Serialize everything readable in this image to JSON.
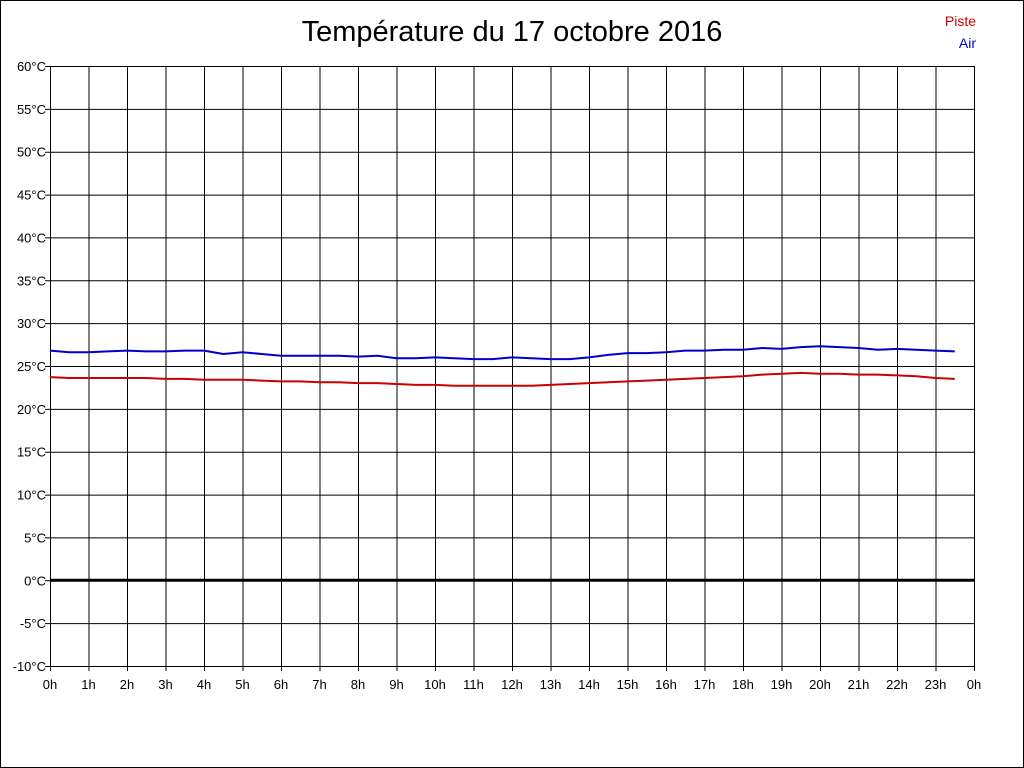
{
  "chart_data": {
    "type": "line",
    "title": "Température du 17 octobre 2016",
    "x_ticks": [
      "0h",
      "1h",
      "2h",
      "3h",
      "4h",
      "5h",
      "6h",
      "7h",
      "8h",
      "9h",
      "10h",
      "11h",
      "12h",
      "13h",
      "14h",
      "15h",
      "16h",
      "17h",
      "18h",
      "19h",
      "20h",
      "21h",
      "22h",
      "23h",
      "0h"
    ],
    "y_ticks": [
      "60°C",
      "55°C",
      "50°C",
      "45°C",
      "40°C",
      "35°C",
      "30°C",
      "25°C",
      "20°C",
      "15°C",
      "10°C",
      "5°C",
      "0°C",
      "-5°C",
      "-10°C"
    ],
    "xlim": [
      0,
      24
    ],
    "ylim": [
      -10,
      60
    ],
    "grid": true,
    "legend_position": "top-right",
    "zero_line": true,
    "series": [
      {
        "name": "Piste",
        "color": "#cc0000",
        "points": [
          [
            0,
            23.7
          ],
          [
            0.5,
            23.6
          ],
          [
            1,
            23.6
          ],
          [
            1.5,
            23.6
          ],
          [
            2,
            23.6
          ],
          [
            2.5,
            23.6
          ],
          [
            3,
            23.5
          ],
          [
            3.5,
            23.5
          ],
          [
            4,
            23.4
          ],
          [
            4.5,
            23.4
          ],
          [
            5,
            23.4
          ],
          [
            5.5,
            23.3
          ],
          [
            6,
            23.2
          ],
          [
            6.5,
            23.2
          ],
          [
            7,
            23.1
          ],
          [
            7.5,
            23.1
          ],
          [
            8,
            23.0
          ],
          [
            8.5,
            23.0
          ],
          [
            9,
            22.9
          ],
          [
            9.5,
            22.8
          ],
          [
            10,
            22.8
          ],
          [
            10.5,
            22.7
          ],
          [
            11,
            22.7
          ],
          [
            11.5,
            22.7
          ],
          [
            12,
            22.7
          ],
          [
            12.5,
            22.7
          ],
          [
            13,
            22.8
          ],
          [
            13.5,
            22.9
          ],
          [
            14,
            23.0
          ],
          [
            14.5,
            23.1
          ],
          [
            15,
            23.2
          ],
          [
            15.5,
            23.3
          ],
          [
            16,
            23.4
          ],
          [
            16.5,
            23.5
          ],
          [
            17,
            23.6
          ],
          [
            17.5,
            23.7
          ],
          [
            18,
            23.8
          ],
          [
            18.5,
            24.0
          ],
          [
            19,
            24.1
          ],
          [
            19.5,
            24.2
          ],
          [
            20,
            24.1
          ],
          [
            20.5,
            24.1
          ],
          [
            21,
            24.0
          ],
          [
            21.5,
            24.0
          ],
          [
            22,
            23.9
          ],
          [
            22.5,
            23.8
          ],
          [
            23,
            23.6
          ],
          [
            23.5,
            23.5
          ]
        ]
      },
      {
        "name": "Air",
        "color": "#0000cc",
        "points": [
          [
            0,
            26.8
          ],
          [
            0.5,
            26.6
          ],
          [
            1,
            26.6
          ],
          [
            1.5,
            26.7
          ],
          [
            2,
            26.8
          ],
          [
            2.5,
            26.7
          ],
          [
            3,
            26.7
          ],
          [
            3.5,
            26.8
          ],
          [
            4,
            26.8
          ],
          [
            4.5,
            26.4
          ],
          [
            5,
            26.6
          ],
          [
            5.5,
            26.4
          ],
          [
            6,
            26.2
          ],
          [
            6.5,
            26.2
          ],
          [
            7,
            26.2
          ],
          [
            7.5,
            26.2
          ],
          [
            8,
            26.1
          ],
          [
            8.5,
            26.2
          ],
          [
            9,
            25.9
          ],
          [
            9.5,
            25.9
          ],
          [
            10,
            26.0
          ],
          [
            10.5,
            25.9
          ],
          [
            11,
            25.8
          ],
          [
            11.5,
            25.8
          ],
          [
            12,
            26.0
          ],
          [
            12.5,
            25.9
          ],
          [
            13,
            25.8
          ],
          [
            13.5,
            25.8
          ],
          [
            14,
            26.0
          ],
          [
            14.5,
            26.3
          ],
          [
            15,
            26.5
          ],
          [
            15.5,
            26.5
          ],
          [
            16,
            26.6
          ],
          [
            16.5,
            26.8
          ],
          [
            17,
            26.8
          ],
          [
            17.5,
            26.9
          ],
          [
            18,
            26.9
          ],
          [
            18.5,
            27.1
          ],
          [
            19,
            27.0
          ],
          [
            19.5,
            27.2
          ],
          [
            20,
            27.3
          ],
          [
            20.5,
            27.2
          ],
          [
            21,
            27.1
          ],
          [
            21.5,
            26.9
          ],
          [
            22,
            27.0
          ],
          [
            22.5,
            26.9
          ],
          [
            23,
            26.8
          ],
          [
            23.5,
            26.7
          ]
        ]
      }
    ]
  }
}
